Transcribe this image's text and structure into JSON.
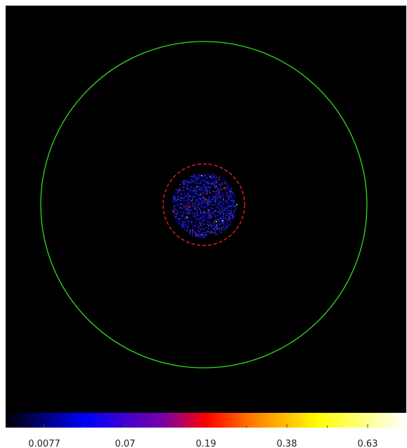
{
  "colorbar": {
    "ticks": [
      0.0077,
      0.07,
      0.19,
      0.38,
      0.63
    ]
  }
}
